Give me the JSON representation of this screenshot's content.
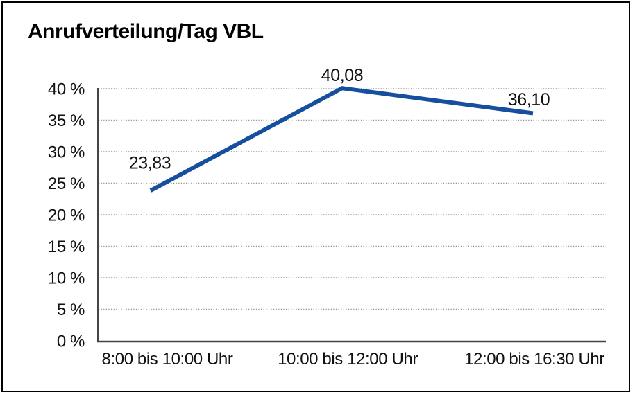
{
  "chart": {
    "title": "Anrufverteilung/Tag VBL"
  },
  "chart_data": {
    "type": "line",
    "title": "Anrufverteilung/Tag VBL",
    "categories": [
      "8:00 bis 10:00 Uhr",
      "10:00 bis 12:00 Uhr",
      "12:00 bis 16:30 Uhr"
    ],
    "series": [
      {
        "name": "Anrufverteilung/Tag VBL",
        "values": [
          23.83,
          40.08,
          36.1
        ],
        "data_labels": [
          "23,83",
          "40,08",
          "36,10"
        ],
        "color": "#154f9e"
      }
    ],
    "xlabel": "",
    "ylabel": "",
    "ylim": [
      0,
      40
    ],
    "yticks": {
      "values": [
        0,
        5,
        10,
        15,
        20,
        25,
        30,
        35,
        40
      ],
      "labels": [
        "0 %",
        "5 %",
        "10 %",
        "15 %",
        "20 %",
        "25 %",
        "30 %",
        "35 %",
        "40 %"
      ]
    },
    "grid": "horizontal-dotted",
    "legend": "none",
    "number_format": "decimal-comma"
  },
  "colors": {
    "line": "#154f9e",
    "gridline": "#8f8f8f",
    "axis": "#454545",
    "frame_border": "#000000",
    "text": "#111111",
    "background": "#ffffff"
  }
}
